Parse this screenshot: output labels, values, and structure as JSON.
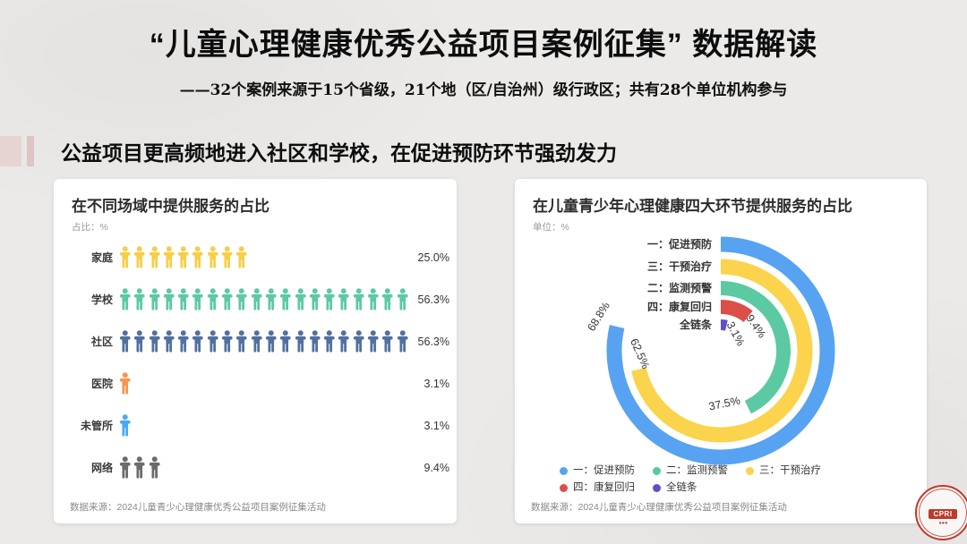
{
  "slide": {
    "title": "“儿童心理健康优秀公益项目案例征集” 数据解读",
    "subtitle": "——32个案例来源于15个省级，21个地（区/自治州）级行政区；共有28个单位机构参与",
    "section_heading": "公益项目更高频地进入社区和学校，在促进预防环节强劲发力",
    "logo_text": "CPRI"
  },
  "chart_data": [
    {
      "type": "bar",
      "variant": "pictogram",
      "title": "在不同场域中提供服务的占比",
      "unit_label": "占比：%",
      "categories": [
        "家庭",
        "学校",
        "社区",
        "医院",
        "未管所",
        "网络"
      ],
      "values": [
        25.0,
        56.3,
        56.3,
        3.1,
        3.1,
        9.4
      ],
      "icon_counts": [
        9,
        20,
        20,
        1,
        1,
        3
      ],
      "colors": [
        "#f7ce46",
        "#5cc9a2",
        "#51709f",
        "#f6954e",
        "#49a9f7",
        "#6b6b6b"
      ],
      "xlabel": "",
      "ylabel": "占比（%）",
      "source": "数据来源：2024儿童青少心理健康优秀公益项目案例征集活动"
    },
    {
      "type": "radial_bar",
      "title": "在儿童青少年心理健康四大环节提供服务的占比",
      "unit_label": "单位：%",
      "categories": [
        "一：促进预防",
        "三：干预治疗",
        "二：监测预警",
        "四：康复回归",
        "全链条"
      ],
      "values": [
        68.8,
        62.5,
        37.5,
        9.4,
        3.1
      ],
      "colors": [
        "#57a3f1",
        "#fbd34c",
        "#5bc9a2",
        "#db4f48",
        "#5d50c9"
      ],
      "legend": [
        {
          "label": "一：促进预防",
          "color": "#57a3f1"
        },
        {
          "label": "二：监测预警",
          "color": "#5bc9a2"
        },
        {
          "label": "三：干预治疗",
          "color": "#fbd34c"
        },
        {
          "label": "四：康复回归",
          "color": "#db4f48"
        },
        {
          "label": "全链条",
          "color": "#5d50c9"
        }
      ],
      "axis_max_pct": 87.5,
      "source": "数据来源：2024儿童青少心理健康优秀公益项目案例征集活动"
    }
  ]
}
